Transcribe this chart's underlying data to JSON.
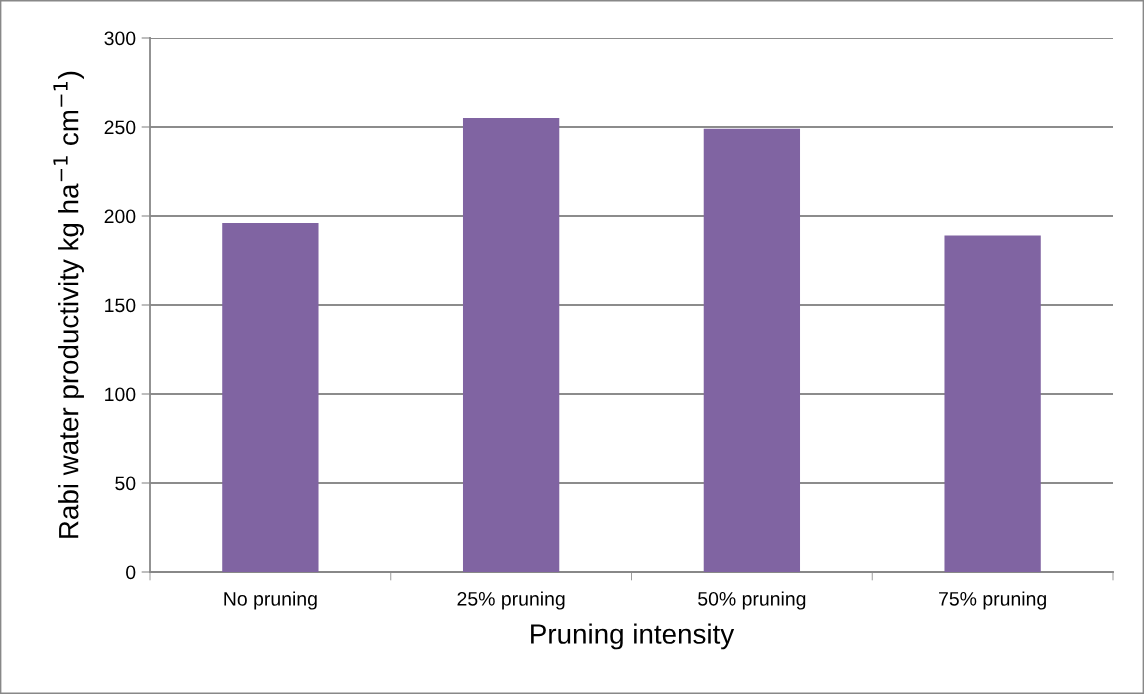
{
  "chart_data": {
    "type": "bar",
    "xlabel": "Pruning intensity",
    "ylabel": "Rabi water productivity kg ha$^{−1}$ cm$^{−1}$)",
    "categories": [
      "No pruning",
      "25% pruning",
      "50% pruning",
      "75% pruning"
    ],
    "values": [
      196,
      255,
      249,
      189
    ],
    "color": "#8064a2",
    "ylim": [
      0,
      300
    ],
    "yticks": [
      0,
      50,
      100,
      150,
      200,
      250,
      300
    ],
    "grid": "y",
    "legend": false
  }
}
